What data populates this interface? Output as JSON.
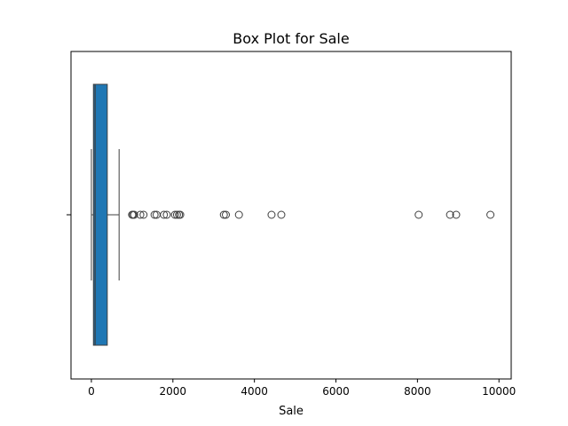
{
  "chart_data": {
    "type": "box",
    "title": "Box Plot for Sale",
    "xlabel": "Sale",
    "ylabel": "",
    "xlim": [
      -500,
      10300
    ],
    "xticks": [
      0,
      2000,
      4000,
      6000,
      8000,
      10000
    ],
    "xtick_labels": [
      "0",
      "2000",
      "4000",
      "6000",
      "8000",
      "10000"
    ],
    "orientation": "horizontal",
    "box": {
      "whisker_low": 0,
      "q1": 50,
      "median": 90,
      "q3": 390,
      "whisker_high": 680,
      "color": "#1f77b4"
    },
    "outliers": [
      1000,
      1020,
      1050,
      1200,
      1280,
      1550,
      1600,
      1780,
      1850,
      2050,
      2100,
      2150,
      2180,
      3250,
      3300,
      3620,
      4420,
      4660,
      8030,
      8800,
      8950,
      9790
    ]
  }
}
